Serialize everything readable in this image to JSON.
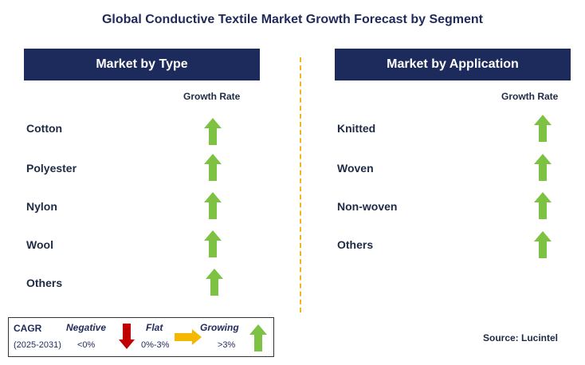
{
  "title": "Global Conductive Textile Market Growth Forecast by Segment",
  "left_panel": {
    "header": "Market by Type",
    "growth_rate_label": "Growth Rate",
    "items": [
      {
        "label": "Cotton",
        "trend": "growing"
      },
      {
        "label": "Polyester",
        "trend": "growing"
      },
      {
        "label": "Nylon",
        "trend": "growing"
      },
      {
        "label": "Wool",
        "trend": "growing"
      },
      {
        "label": "Others",
        "trend": "growing"
      }
    ]
  },
  "right_panel": {
    "header": "Market by Application",
    "growth_rate_label": "Growth Rate",
    "items": [
      {
        "label": "Knitted",
        "trend": "growing"
      },
      {
        "label": "Woven",
        "trend": "growing"
      },
      {
        "label": "Non-woven",
        "trend": "growing"
      },
      {
        "label": "Others",
        "trend": "growing"
      }
    ]
  },
  "legend": {
    "cagr_label": "CAGR",
    "period": "(2025-2031)",
    "negative_label": "Negative",
    "negative_range": "<0%",
    "flat_label": "Flat",
    "flat_range": "0%-3%",
    "growing_label": "Growing",
    "growing_range": ">3%"
  },
  "source": "Source: Lucintel",
  "colors": {
    "header_bg": "#1c2a5c",
    "growing": "#7dc242",
    "negative": "#c00000",
    "flat": "#f5b800",
    "divider": "#f2b51a"
  }
}
